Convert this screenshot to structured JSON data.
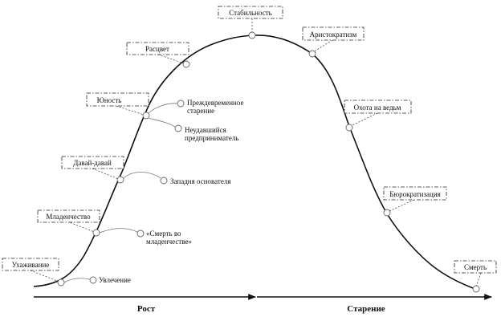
{
  "stages": [
    {
      "id": "courtship",
      "label": "Ухаживание"
    },
    {
      "id": "infancy",
      "label": "Младенчество"
    },
    {
      "id": "go-go",
      "label": "Давай-давай"
    },
    {
      "id": "adolescence",
      "label": "Юность"
    },
    {
      "id": "prime",
      "label": "Расцвет"
    },
    {
      "id": "stability",
      "label": "Стабильность"
    },
    {
      "id": "aristocracy",
      "label": "Аристократизм"
    },
    {
      "id": "witch-hunt",
      "label": "Охота на ведьм"
    },
    {
      "id": "bureaucratization",
      "label": "Бюрократизация"
    },
    {
      "id": "death",
      "label": "Смерть"
    }
  ],
  "failures": [
    {
      "id": "affair",
      "lines": [
        "Увлечение"
      ]
    },
    {
      "id": "infant-mortality",
      "lines": [
        "«Смерть во",
        "младенчестве»"
      ]
    },
    {
      "id": "founder-trap",
      "lines": [
        "Западня основателя"
      ]
    },
    {
      "id": "unfulfilled-entrepreneur",
      "lines": [
        "Неудавшийся",
        "предприниматель"
      ]
    },
    {
      "id": "premature-aging",
      "lines": [
        "Преждевременное",
        "старение"
      ]
    }
  ],
  "axis": {
    "growth_label": "Рост",
    "aging_label": "Старение"
  }
}
